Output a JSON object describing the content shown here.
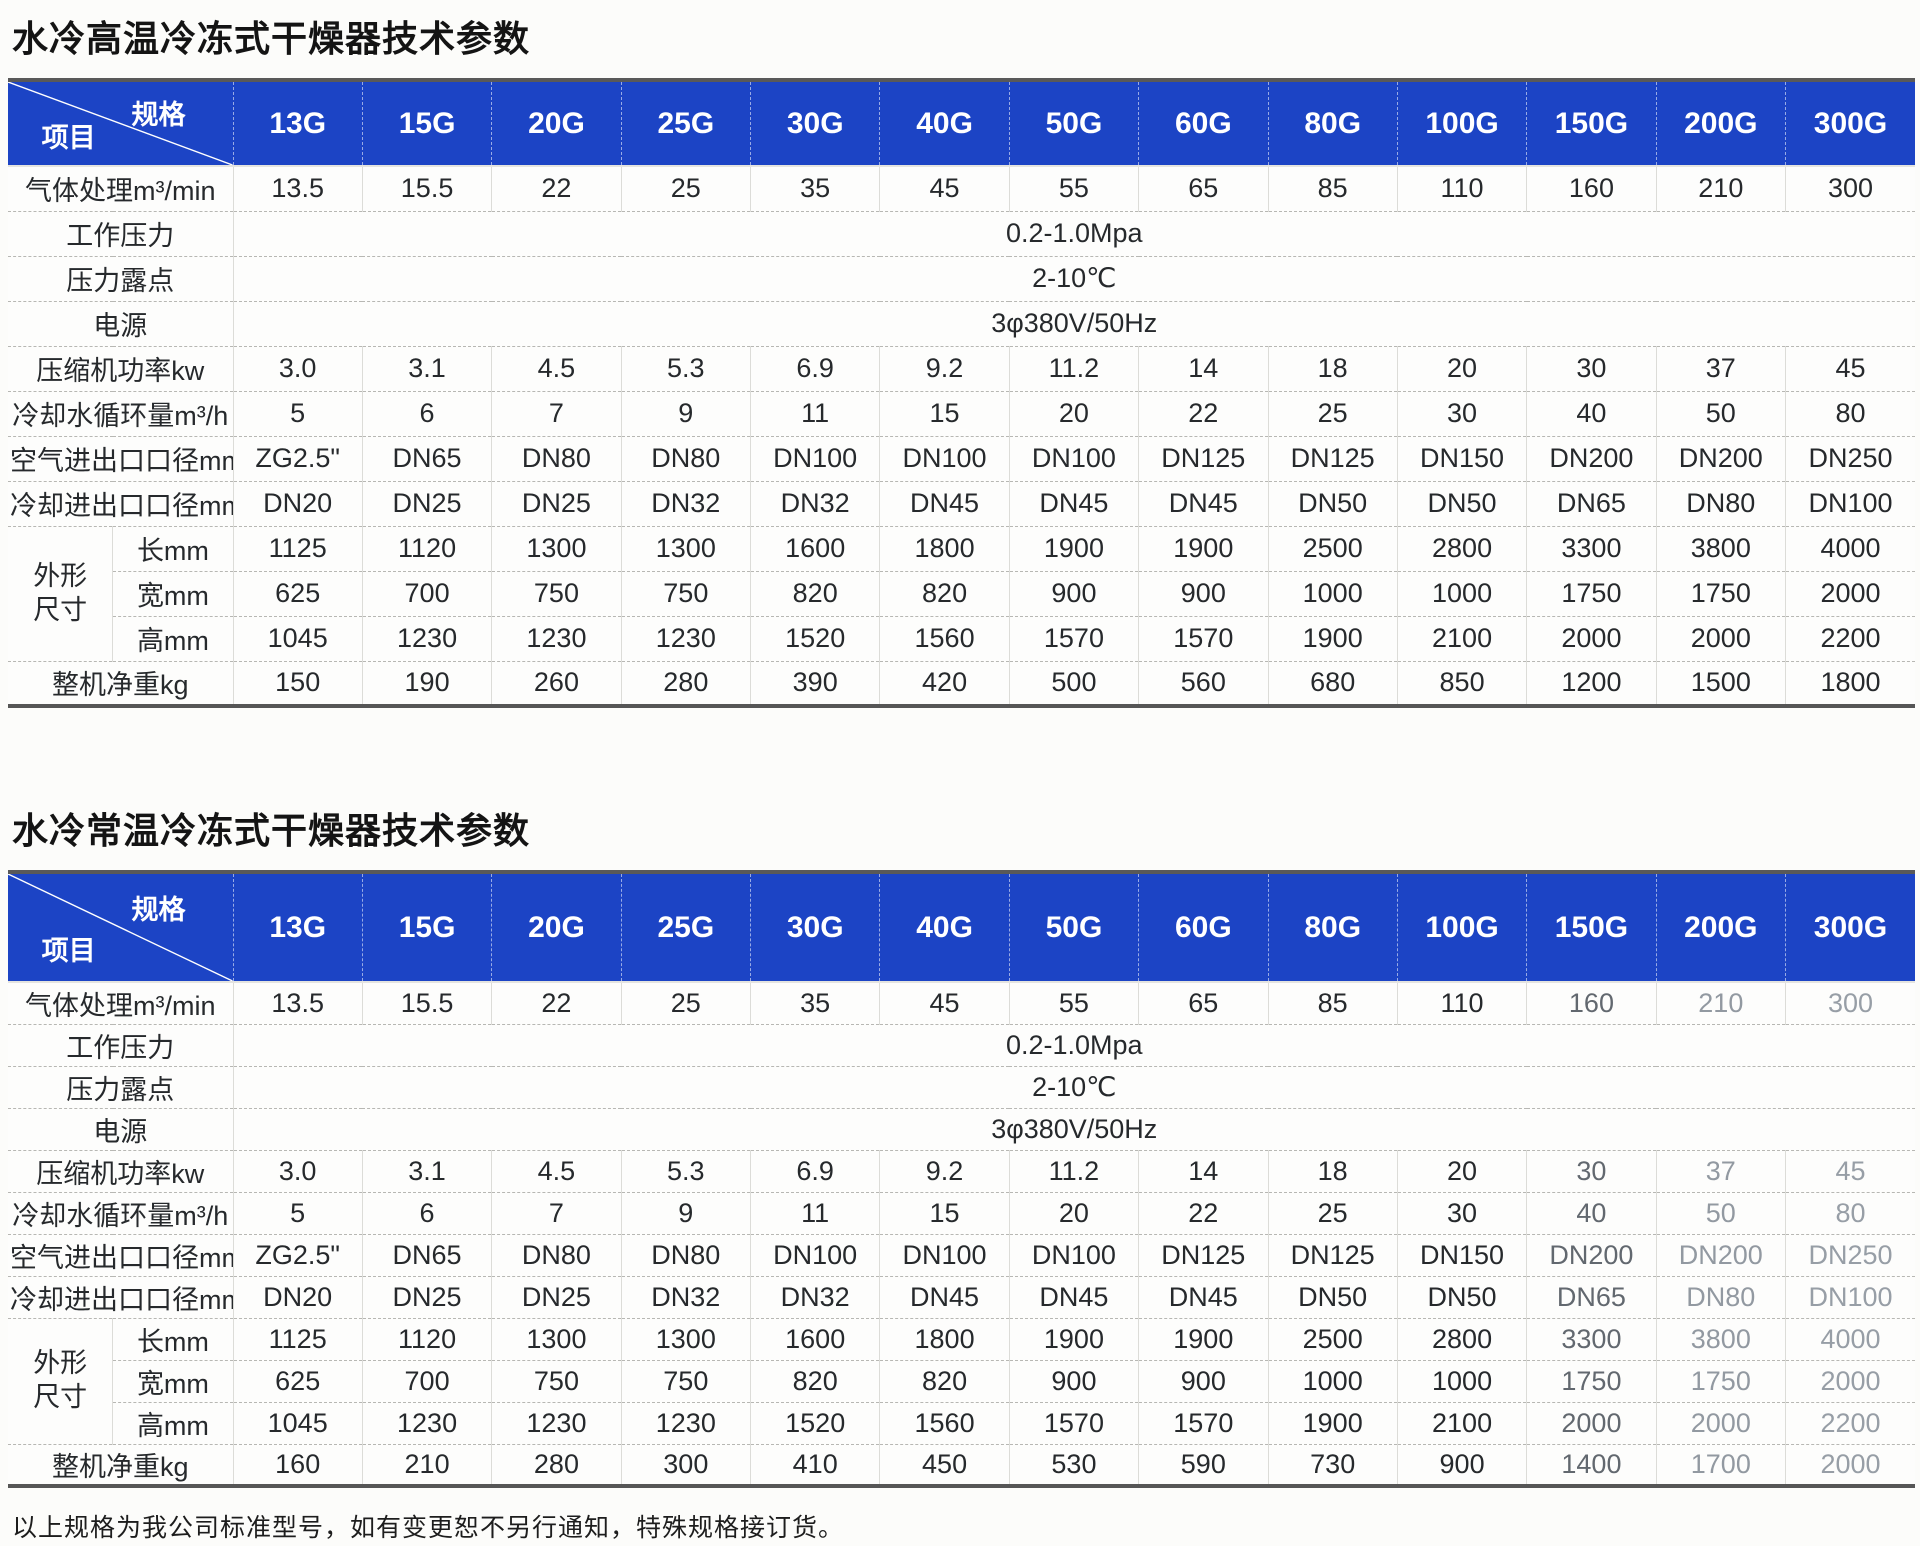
{
  "corner": {
    "top_right": "规格",
    "bottom_left": "项目"
  },
  "spec_columns": [
    "13G",
    "15G",
    "20G",
    "25G",
    "30G",
    "40G",
    "50G",
    "60G",
    "80G",
    "100G",
    "150G",
    "200G",
    "300G"
  ],
  "colors": {
    "header_blue": "#1c44c5",
    "header_text": "#ffffff",
    "border_dark": "#565656"
  },
  "footnote": "以上规格为我公司标准型号，如有变更恕不另行通知，特殊规格接订货。",
  "tables": [
    {
      "title": "水冷高温冷冻式干燥器技术参数",
      "rows": [
        {
          "label": "气体处理m³/min",
          "values": [
            "13.5",
            "15.5",
            "22",
            "25",
            "35",
            "45",
            "55",
            "65",
            "85",
            "110",
            "160",
            "210",
            "300"
          ]
        },
        {
          "label": "工作压力",
          "merged": "0.2-1.0Mpa"
        },
        {
          "label": "压力露点",
          "merged": "2-10℃"
        },
        {
          "label": "电源",
          "merged": "3φ380V/50Hz"
        },
        {
          "label": "压缩机功率kw",
          "values": [
            "3.0",
            "3.1",
            "4.5",
            "5.3",
            "6.9",
            "9.2",
            "11.2",
            "14",
            "18",
            "20",
            "30",
            "37",
            "45"
          ]
        },
        {
          "label": "冷却水循环量m³/h",
          "values": [
            "5",
            "6",
            "7",
            "9",
            "11",
            "15",
            "20",
            "22",
            "25",
            "30",
            "40",
            "50",
            "80"
          ]
        },
        {
          "label": "空气进出口口径mm",
          "values": [
            "ZG2.5\"",
            "DN65",
            "DN80",
            "DN80",
            "DN100",
            "DN100",
            "DN100",
            "DN125",
            "DN125",
            "DN150",
            "DN200",
            "DN200",
            "DN250"
          ]
        },
        {
          "label": "冷却进出口口径mm",
          "values": [
            "DN20",
            "DN25",
            "DN25",
            "DN32",
            "DN32",
            "DN45",
            "DN45",
            "DN45",
            "DN50",
            "DN50",
            "DN65",
            "DN80",
            "DN100"
          ]
        },
        {
          "group_label": "外形尺寸",
          "sub_rows": [
            {
              "label": "长mm",
              "values": [
                "1125",
                "1120",
                "1300",
                "1300",
                "1600",
                "1800",
                "1900",
                "1900",
                "2500",
                "2800",
                "3300",
                "3800",
                "4000"
              ]
            },
            {
              "label": "宽mm",
              "values": [
                "625",
                "700",
                "750",
                "750",
                "820",
                "820",
                "900",
                "900",
                "1000",
                "1000",
                "1750",
                "1750",
                "2000"
              ]
            },
            {
              "label": "高mm",
              "values": [
                "1045",
                "1230",
                "1230",
                "1230",
                "1520",
                "1560",
                "1570",
                "1570",
                "1900",
                "2100",
                "2000",
                "2000",
                "2200"
              ]
            }
          ]
        },
        {
          "label": "整机净重kg",
          "values": [
            "150",
            "190",
            "260",
            "280",
            "390",
            "420",
            "500",
            "560",
            "680",
            "850",
            "1200",
            "1500",
            "1800"
          ]
        }
      ]
    },
    {
      "title": "水冷常温冷冻式干燥器技术参数",
      "rows": [
        {
          "label": "气体处理m³/min",
          "values": [
            "13.5",
            "15.5",
            "22",
            "25",
            "35",
            "45",
            "55",
            "65",
            "85",
            "110",
            "160",
            "210",
            "300"
          ]
        },
        {
          "label": "工作压力",
          "merged": "0.2-1.0Mpa"
        },
        {
          "label": "压力露点",
          "merged": "2-10℃"
        },
        {
          "label": "电源",
          "merged": "3φ380V/50Hz"
        },
        {
          "label": "压缩机功率kw",
          "values": [
            "3.0",
            "3.1",
            "4.5",
            "5.3",
            "6.9",
            "9.2",
            "11.2",
            "14",
            "18",
            "20",
            "30",
            "37",
            "45"
          ]
        },
        {
          "label": "冷却水循环量m³/h",
          "values": [
            "5",
            "6",
            "7",
            "9",
            "11",
            "15",
            "20",
            "22",
            "25",
            "30",
            "40",
            "50",
            "80"
          ]
        },
        {
          "label": "空气进出口口径mm",
          "values": [
            "ZG2.5\"",
            "DN65",
            "DN80",
            "DN80",
            "DN100",
            "DN100",
            "DN100",
            "DN125",
            "DN125",
            "DN150",
            "DN200",
            "DN200",
            "DN250"
          ]
        },
        {
          "label": "冷却进出口口径mm",
          "values": [
            "DN20",
            "DN25",
            "DN25",
            "DN32",
            "DN32",
            "DN45",
            "DN45",
            "DN45",
            "DN50",
            "DN50",
            "DN65",
            "DN80",
            "DN100"
          ]
        },
        {
          "group_label": "外形尺寸",
          "sub_rows": [
            {
              "label": "长mm",
              "values": [
                "1125",
                "1120",
                "1300",
                "1300",
                "1600",
                "1800",
                "1900",
                "1900",
                "2500",
                "2800",
                "3300",
                "3800",
                "4000"
              ]
            },
            {
              "label": "宽mm",
              "values": [
                "625",
                "700",
                "750",
                "750",
                "820",
                "820",
                "900",
                "900",
                "1000",
                "1000",
                "1750",
                "1750",
                "2000"
              ]
            },
            {
              "label": "高mm",
              "values": [
                "1045",
                "1230",
                "1230",
                "1230",
                "1520",
                "1560",
                "1570",
                "1570",
                "1900",
                "2100",
                "2000",
                "2000",
                "2200"
              ]
            }
          ]
        },
        {
          "label": "整机净重kg",
          "values": [
            "160",
            "210",
            "280",
            "300",
            "410",
            "450",
            "530",
            "590",
            "730",
            "900",
            "1400",
            "1700",
            "2000"
          ]
        }
      ]
    }
  ]
}
